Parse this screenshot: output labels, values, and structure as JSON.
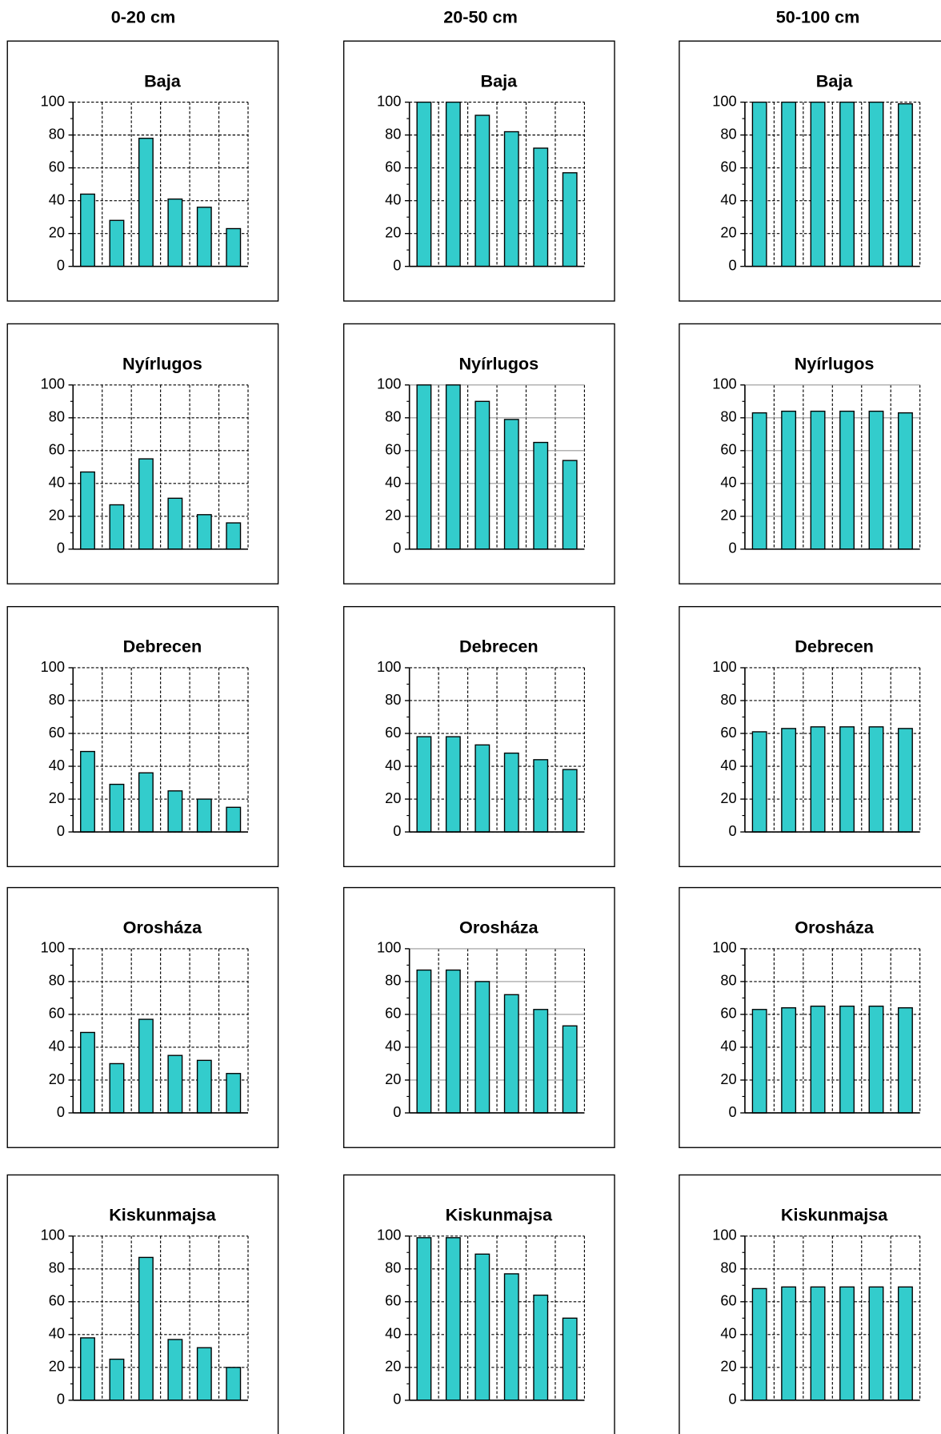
{
  "column_headers": [
    "0-20 cm",
    "20-50 cm",
    "50-100 cm"
  ],
  "chart_data": [
    {
      "type": "bar",
      "title": "Baja",
      "categories": [
        null,
        null,
        null,
        null,
        null,
        null
      ],
      "values": [
        44,
        28,
        78,
        41,
        36,
        23
      ],
      "color": "#33cccc",
      "ylim": [
        0,
        100
      ],
      "yticks": [
        0,
        20,
        40,
        60,
        80,
        100
      ],
      "grid": true,
      "grid_style": "dashed"
    },
    {
      "type": "bar",
      "title": "Baja",
      "categories": [
        null,
        null,
        null,
        null,
        null,
        null
      ],
      "values": [
        100,
        100,
        92,
        82,
        72,
        57
      ],
      "color": "#33cccc",
      "ylim": [
        0,
        100
      ],
      "yticks": [
        0,
        20,
        40,
        60,
        80,
        100
      ],
      "grid": true,
      "grid_style": "dashed"
    },
    {
      "type": "bar",
      "title": "Baja",
      "categories": [
        null,
        null,
        null,
        null,
        null,
        null
      ],
      "values": [
        100,
        100,
        100,
        100,
        100,
        99
      ],
      "color": "#33cccc",
      "ylim": [
        0,
        100
      ],
      "yticks": [
        0,
        20,
        40,
        60,
        80,
        100
      ],
      "grid": true,
      "grid_style": "dashed"
    },
    {
      "type": "bar",
      "title": "Nyírlugos",
      "categories": [
        null,
        null,
        null,
        null,
        null,
        null
      ],
      "values": [
        47,
        27,
        55,
        31,
        21,
        16
      ],
      "color": "#33cccc",
      "ylim": [
        0,
        100
      ],
      "yticks": [
        0,
        20,
        40,
        60,
        80,
        100
      ],
      "grid": true,
      "grid_style": "dashed"
    },
    {
      "type": "bar",
      "title": "Nyírlugos",
      "categories": [
        null,
        null,
        null,
        null,
        null,
        null
      ],
      "values": [
        100,
        100,
        90,
        79,
        65,
        54
      ],
      "color": "#33cccc",
      "ylim": [
        0,
        100
      ],
      "yticks": [
        0,
        20,
        40,
        60,
        80,
        100
      ],
      "grid": true,
      "grid_style": "solid"
    },
    {
      "type": "bar",
      "title": "Nyírlugos",
      "categories": [
        null,
        null,
        null,
        null,
        null,
        null
      ],
      "values": [
        83,
        84,
        84,
        84,
        84,
        83
      ],
      "color": "#33cccc",
      "ylim": [
        0,
        100
      ],
      "yticks": [
        0,
        20,
        40,
        60,
        80,
        100
      ],
      "grid": true,
      "grid_style": "solid"
    },
    {
      "type": "bar",
      "title": "Debrecen",
      "categories": [
        null,
        null,
        null,
        null,
        null,
        null
      ],
      "values": [
        49,
        29,
        36,
        25,
        20,
        15
      ],
      "color": "#33cccc",
      "ylim": [
        0,
        100
      ],
      "yticks": [
        0,
        20,
        40,
        60,
        80,
        100
      ],
      "grid": true,
      "grid_style": "dashed"
    },
    {
      "type": "bar",
      "title": "Debrecen",
      "categories": [
        null,
        null,
        null,
        null,
        null,
        null
      ],
      "values": [
        58,
        58,
        53,
        48,
        44,
        38
      ],
      "color": "#33cccc",
      "ylim": [
        0,
        100
      ],
      "yticks": [
        0,
        20,
        40,
        60,
        80,
        100
      ],
      "grid": true,
      "grid_style": "dashed"
    },
    {
      "type": "bar",
      "title": "Debrecen",
      "categories": [
        null,
        null,
        null,
        null,
        null,
        null
      ],
      "values": [
        61,
        63,
        64,
        64,
        64,
        63
      ],
      "color": "#33cccc",
      "ylim": [
        0,
        100
      ],
      "yticks": [
        0,
        20,
        40,
        60,
        80,
        100
      ],
      "grid": true,
      "grid_style": "dashed"
    },
    {
      "type": "bar",
      "title": "Orosháza",
      "categories": [
        null,
        null,
        null,
        null,
        null,
        null
      ],
      "values": [
        49,
        30,
        57,
        35,
        32,
        24
      ],
      "color": "#33cccc",
      "ylim": [
        0,
        100
      ],
      "yticks": [
        0,
        20,
        40,
        60,
        80,
        100
      ],
      "grid": true,
      "grid_style": "dashed"
    },
    {
      "type": "bar",
      "title": "Orosháza",
      "categories": [
        null,
        null,
        null,
        null,
        null,
        null
      ],
      "values": [
        87,
        87,
        80,
        72,
        63,
        53
      ],
      "color": "#33cccc",
      "ylim": [
        0,
        100
      ],
      "yticks": [
        0,
        20,
        40,
        60,
        80,
        100
      ],
      "grid": true,
      "grid_style": "solid"
    },
    {
      "type": "bar",
      "title": "Orosháza",
      "categories": [
        null,
        null,
        null,
        null,
        null,
        null
      ],
      "values": [
        63,
        64,
        65,
        65,
        65,
        64
      ],
      "color": "#33cccc",
      "ylim": [
        0,
        100
      ],
      "yticks": [
        0,
        20,
        40,
        60,
        80,
        100
      ],
      "grid": true,
      "grid_style": "dashed"
    },
    {
      "type": "bar",
      "title": "Kiskunmajsa",
      "categories": [
        null,
        null,
        null,
        null,
        null,
        null
      ],
      "values": [
        38,
        25,
        87,
        37,
        32,
        20
      ],
      "color": "#33cccc",
      "ylim": [
        0,
        100
      ],
      "yticks": [
        0,
        20,
        40,
        60,
        80,
        100
      ],
      "grid": true,
      "grid_style": "dashed"
    },
    {
      "type": "bar",
      "title": "Kiskunmajsa",
      "categories": [
        null,
        null,
        null,
        null,
        null,
        null
      ],
      "values": [
        99,
        99,
        89,
        77,
        64,
        50
      ],
      "color": "#33cccc",
      "ylim": [
        0,
        100
      ],
      "yticks": [
        0,
        20,
        40,
        60,
        80,
        100
      ],
      "grid": true,
      "grid_style": "dashed"
    },
    {
      "type": "bar",
      "title": "Kiskunmajsa",
      "categories": [
        null,
        null,
        null,
        null,
        null,
        null
      ],
      "values": [
        68,
        69,
        69,
        69,
        69,
        69
      ],
      "color": "#33cccc",
      "ylim": [
        0,
        100
      ],
      "yticks": [
        0,
        20,
        40,
        60,
        80,
        100
      ],
      "grid": true,
      "grid_style": "dashed"
    }
  ]
}
